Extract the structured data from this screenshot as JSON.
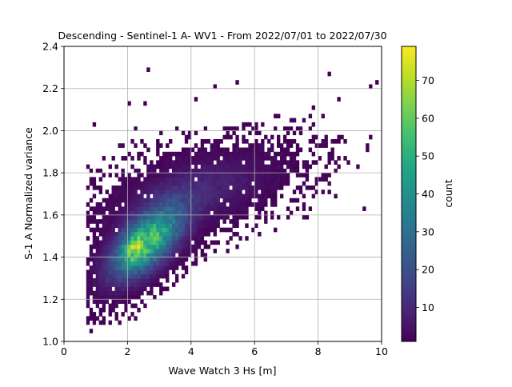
{
  "chart_data": {
    "type": "heatmap",
    "subtype": "2d-histogram",
    "title": "Descending - Sentinel-1 A- WV1 - From 2022/07/01 to 2022/07/30",
    "xlabel": "Wave Watch 3 Hs [m]",
    "ylabel": "S-1 A Normalized variance",
    "xlim": [
      0,
      10
    ],
    "ylim": [
      1.0,
      2.4
    ],
    "x_ticks": [
      "0",
      "2",
      "4",
      "6",
      "8",
      "10"
    ],
    "y_ticks": [
      "1.0",
      "1.2",
      "1.4",
      "1.6",
      "1.8",
      "2.0",
      "2.2",
      "2.4"
    ],
    "grid": true,
    "colormap": "viridis",
    "colorbar": {
      "label": "count",
      "range": [
        1,
        79
      ],
      "ticks": [
        "10",
        "20",
        "30",
        "40",
        "50",
        "60",
        "70"
      ]
    },
    "density_model": {
      "peak_count": 79,
      "peak_location": [
        2.15,
        1.44
      ],
      "core": {
        "center": [
          2.6,
          1.47
        ],
        "sd_x": 0.75,
        "sd_y": 0.09,
        "slope": 0.09,
        "weight": 55
      },
      "plume": {
        "center": [
          4.2,
          1.72
        ],
        "sd_x": 1.6,
        "sd_y": 0.1,
        "slope": 0.035,
        "weight": 9
      }
    }
  }
}
